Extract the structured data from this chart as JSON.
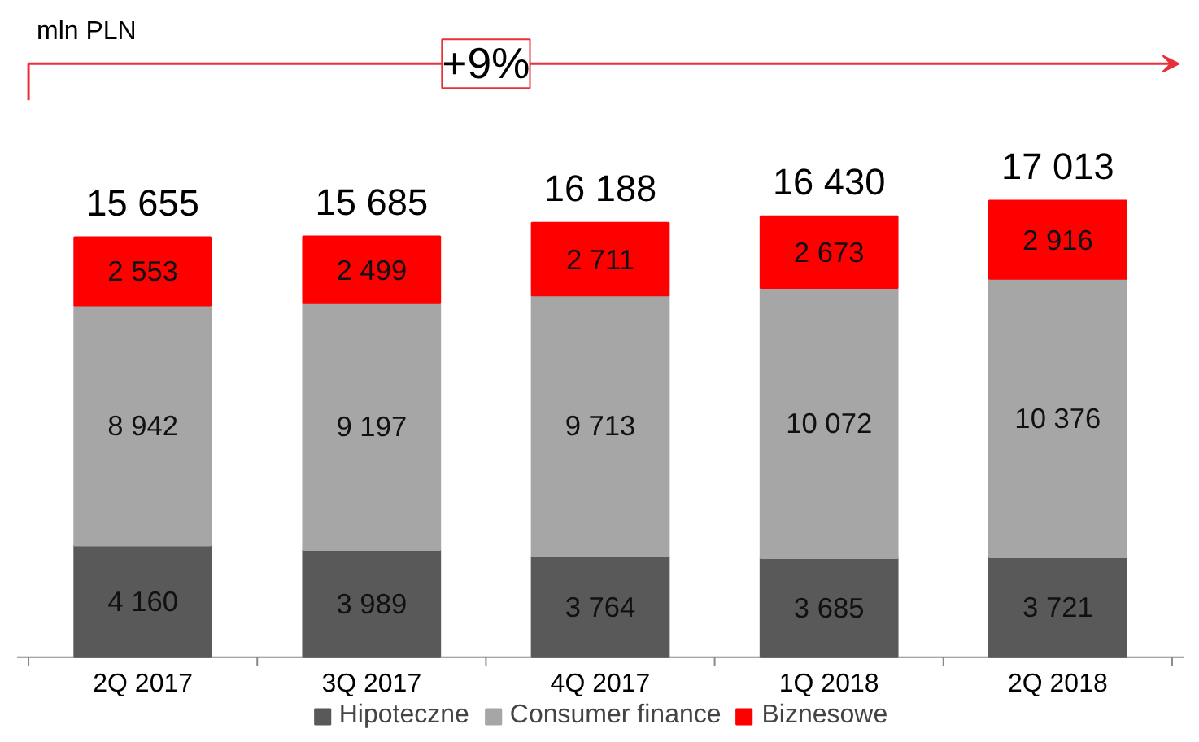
{
  "chart_data": {
    "type": "bar",
    "stacked": true,
    "categories": [
      "2Q 2017",
      "3Q 2017",
      "4Q 2017",
      "1Q 2018",
      "2Q 2018"
    ],
    "series": [
      {
        "name": "Hipoteczne",
        "color": "#595959",
        "values": [
          4160,
          3989,
          3764,
          3685,
          3721
        ],
        "value_labels": [
          "4 160",
          "3 989",
          "3 764",
          "3 685",
          "3 721"
        ]
      },
      {
        "name": "Consumer finance",
        "color": "#a6a6a6",
        "values": [
          8942,
          9197,
          9713,
          10072,
          10376
        ],
        "value_labels": [
          "8 942",
          "9 197",
          "9 713",
          "10 072",
          "10 376"
        ]
      },
      {
        "name": "Biznesowe",
        "color": "#ff0000",
        "values": [
          2553,
          2499,
          2711,
          2673,
          2916
        ],
        "value_labels": [
          "2 553",
          "2 499",
          "2 711",
          "2 673",
          "2 916"
        ]
      }
    ],
    "totals": [
      "15 655",
      "15 685",
      "16 188",
      "16 430",
      "17 013"
    ],
    "annotations": [
      "mln PLN",
      "+9%"
    ],
    "legend": "bottom",
    "grid": false
  }
}
